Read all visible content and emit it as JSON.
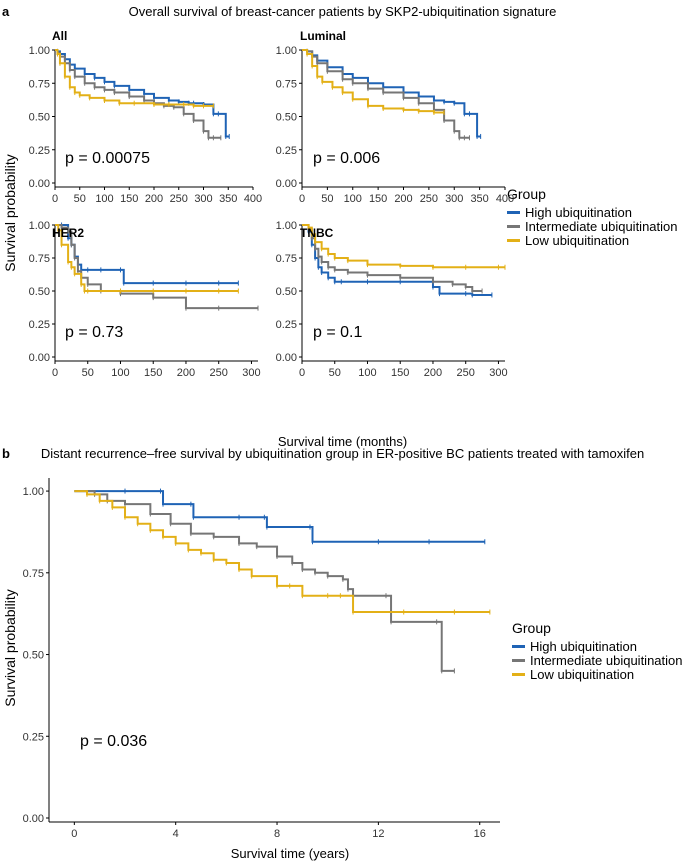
{
  "panel_a": {
    "letter": "a",
    "title": "Overall survival of breast-cancer patients by SKP2-ubiquitination signature",
    "ylabel": "Survival probability",
    "xlabel": "Survival time (months)"
  },
  "panel_b": {
    "letter": "b",
    "title": "Distant recurrence–free survival by ubiquitination group in ER-positive BC patients treated with tamoxifen",
    "ylabel": "Survival probability",
    "xlabel": "Survival time (years)"
  },
  "legend": {
    "title": "Group",
    "items": [
      {
        "label": "High ubiquitination",
        "color": "#1f63b5"
      },
      {
        "label": "Intermediate ubiquitination",
        "color": "#767676"
      },
      {
        "label": "Low ubiquitination",
        "color": "#e3b017"
      }
    ]
  },
  "chart_data": [
    {
      "type": "line",
      "title": "All",
      "annotation": "p = 0.00075",
      "xlabel": "Survival time (months)",
      "ylabel": "Survival probability",
      "xticks": [
        0,
        50,
        100,
        150,
        200,
        250,
        300,
        350,
        400
      ],
      "yticks": [
        "0.00",
        "0.25",
        "0.50",
        "0.75",
        "1.00"
      ],
      "xlim": [
        0,
        400
      ],
      "ylim": [
        0,
        1
      ],
      "series": [
        {
          "name": "High ubiquitination",
          "x": [
            0,
            5,
            10,
            20,
            30,
            40,
            60,
            80,
            100,
            120,
            150,
            180,
            200,
            230,
            250,
            270,
            280,
            300,
            320,
            330,
            345,
            352
          ],
          "y": [
            1,
            0.99,
            0.97,
            0.93,
            0.89,
            0.86,
            0.82,
            0.79,
            0.76,
            0.73,
            0.7,
            0.67,
            0.64,
            0.62,
            0.61,
            0.6,
            0.6,
            0.59,
            0.52,
            0.52,
            0.35,
            0.35
          ]
        },
        {
          "name": "Intermediate ubiquitination",
          "x": [
            0,
            5,
            10,
            20,
            30,
            40,
            60,
            80,
            100,
            120,
            150,
            180,
            200,
            220,
            240,
            260,
            280,
            300,
            310,
            320,
            335
          ],
          "y": [
            1,
            0.98,
            0.95,
            0.9,
            0.85,
            0.8,
            0.75,
            0.72,
            0.7,
            0.68,
            0.65,
            0.62,
            0.6,
            0.58,
            0.57,
            0.52,
            0.47,
            0.39,
            0.34,
            0.34,
            0.34
          ]
        },
        {
          "name": "Low ubiquitination",
          "x": [
            0,
            5,
            10,
            20,
            30,
            40,
            50,
            70,
            100,
            130,
            160,
            200,
            230,
            260,
            280,
            300,
            320
          ],
          "y": [
            1,
            0.97,
            0.9,
            0.8,
            0.72,
            0.68,
            0.66,
            0.64,
            0.62,
            0.6,
            0.6,
            0.59,
            0.59,
            0.59,
            0.58,
            0.58,
            0.58
          ]
        }
      ]
    },
    {
      "type": "line",
      "title": "Luminal",
      "annotation": "p = 0.006",
      "xlabel": "Survival time (months)",
      "ylabel": "Survival probability",
      "xticks": [
        0,
        50,
        100,
        150,
        200,
        250,
        300,
        350,
        400
      ],
      "yticks": [
        "0.00",
        "0.25",
        "0.50",
        "0.75",
        "1.00"
      ],
      "xlim": [
        0,
        400
      ],
      "ylim": [
        0,
        1
      ],
      "series": [
        {
          "name": "High ubiquitination",
          "x": [
            0,
            10,
            20,
            30,
            50,
            80,
            100,
            130,
            160,
            200,
            230,
            260,
            280,
            300,
            320,
            330,
            345,
            352
          ],
          "y": [
            1,
            0.99,
            0.96,
            0.92,
            0.87,
            0.82,
            0.79,
            0.75,
            0.72,
            0.68,
            0.65,
            0.62,
            0.61,
            0.6,
            0.52,
            0.52,
            0.35,
            0.35
          ]
        },
        {
          "name": "Intermediate ubiquitination",
          "x": [
            0,
            10,
            20,
            30,
            50,
            80,
            100,
            130,
            160,
            200,
            230,
            260,
            280,
            300,
            310,
            320,
            330
          ],
          "y": [
            1,
            0.99,
            0.95,
            0.9,
            0.84,
            0.78,
            0.75,
            0.71,
            0.68,
            0.64,
            0.6,
            0.55,
            0.47,
            0.39,
            0.34,
            0.34,
            0.34
          ]
        },
        {
          "name": "Low ubiquitination",
          "x": [
            0,
            10,
            20,
            30,
            40,
            60,
            80,
            100,
            130,
            160,
            200,
            230,
            260,
            280
          ],
          "y": [
            1,
            0.97,
            0.88,
            0.8,
            0.76,
            0.72,
            0.68,
            0.63,
            0.58,
            0.56,
            0.55,
            0.54,
            0.53,
            0.53
          ]
        }
      ]
    },
    {
      "type": "line",
      "title": "HER2",
      "annotation": "p = 0.73",
      "xlabel": "Survival time (months)",
      "ylabel": "Survival probability",
      "xticks": [
        0,
        50,
        100,
        150,
        200,
        250,
        300
      ],
      "yticks": [
        "0.00",
        "0.25",
        "0.50",
        "0.75",
        "1.00"
      ],
      "xlim": [
        0,
        310
      ],
      "ylim": [
        0,
        1
      ],
      "series": [
        {
          "name": "High ubiquitination",
          "x": [
            0,
            10,
            20,
            25,
            30,
            35,
            40,
            50,
            70,
            100,
            105,
            150,
            200,
            250,
            280
          ],
          "y": [
            1,
            1,
            0.9,
            0.85,
            0.76,
            0.7,
            0.66,
            0.66,
            0.66,
            0.66,
            0.56,
            0.56,
            0.56,
            0.56,
            0.56
          ]
        },
        {
          "name": "Intermediate ubiquitination",
          "x": [
            0,
            10,
            20,
            25,
            30,
            35,
            40,
            50,
            70,
            100,
            150,
            200,
            250,
            310
          ],
          "y": [
            1,
            0.98,
            0.95,
            0.85,
            0.75,
            0.65,
            0.6,
            0.55,
            0.5,
            0.48,
            0.45,
            0.37,
            0.37,
            0.37
          ]
        },
        {
          "name": "Low ubiquitination",
          "x": [
            0,
            5,
            10,
            20,
            25,
            30,
            40,
            45,
            50,
            100,
            150,
            200,
            250,
            280
          ],
          "y": [
            1,
            0.96,
            0.85,
            0.72,
            0.68,
            0.63,
            0.55,
            0.5,
            0.5,
            0.5,
            0.5,
            0.5,
            0.5,
            0.5
          ]
        }
      ]
    },
    {
      "type": "line",
      "title": "TNBC",
      "annotation": "p = 0.1",
      "xlabel": "Survival time (months)",
      "ylabel": "Survival probability",
      "xticks": [
        0,
        50,
        100,
        150,
        200,
        250,
        300
      ],
      "yticks": [
        "0.00",
        "0.25",
        "0.50",
        "0.75",
        "1.00"
      ],
      "xlim": [
        0,
        310
      ],
      "ylim": [
        0,
        1
      ],
      "series": [
        {
          "name": "High ubiquitination",
          "x": [
            0,
            10,
            15,
            20,
            25,
            30,
            40,
            50,
            60,
            100,
            150,
            200,
            210,
            250,
            260,
            290
          ],
          "y": [
            1,
            0.95,
            0.85,
            0.75,
            0.68,
            0.64,
            0.6,
            0.57,
            0.57,
            0.57,
            0.57,
            0.53,
            0.48,
            0.48,
            0.47,
            0.47
          ]
        },
        {
          "name": "Intermediate ubiquitination",
          "x": [
            0,
            10,
            15,
            20,
            25,
            30,
            40,
            50,
            70,
            100,
            150,
            200,
            230,
            250,
            260,
            275
          ],
          "y": [
            1,
            0.97,
            0.9,
            0.82,
            0.76,
            0.72,
            0.68,
            0.66,
            0.64,
            0.62,
            0.6,
            0.57,
            0.55,
            0.53,
            0.5,
            0.5
          ]
        },
        {
          "name": "Low ubiquitination",
          "x": [
            0,
            10,
            15,
            20,
            30,
            40,
            50,
            70,
            100,
            150,
            200,
            250,
            300,
            310
          ],
          "y": [
            1,
            0.98,
            0.93,
            0.87,
            0.82,
            0.78,
            0.75,
            0.73,
            0.7,
            0.69,
            0.68,
            0.68,
            0.68,
            0.68
          ]
        }
      ]
    },
    {
      "type": "line",
      "title": "Distant recurrence–free survival by ubiquitination group in ER-positive BC patients treated with tamoxifen",
      "annotation": "p = 0.036",
      "xlabel": "Survival time (years)",
      "ylabel": "Survival probability",
      "xticks": [
        0,
        4,
        8,
        12,
        16
      ],
      "yticks": [
        "0.00",
        "0.25",
        "0.50",
        "0.75",
        "1.00"
      ],
      "xlim": [
        -1,
        16.8
      ],
      "ylim": [
        0,
        1.04
      ],
      "series": [
        {
          "name": "High ubiquitination",
          "x": [
            0,
            2,
            3.4,
            3.5,
            4.6,
            4.7,
            6.5,
            7.5,
            7.6,
            9.3,
            9.4,
            12,
            14,
            16.2
          ],
          "y": [
            1,
            1,
            1,
            0.96,
            0.96,
            0.92,
            0.92,
            0.92,
            0.89,
            0.89,
            0.845,
            0.845,
            0.845,
            0.845
          ]
        },
        {
          "name": "Intermediate ubiquitination",
          "x": [
            0,
            0.8,
            1.3,
            2,
            3,
            3.8,
            4.6,
            5.5,
            6.5,
            7.2,
            8,
            8.6,
            9,
            9.5,
            10,
            10.6,
            10.8,
            11,
            12.3,
            12.5,
            14.3,
            14.5,
            15
          ],
          "y": [
            1,
            0.99,
            0.97,
            0.96,
            0.93,
            0.9,
            0.87,
            0.86,
            0.84,
            0.83,
            0.8,
            0.78,
            0.76,
            0.75,
            0.74,
            0.73,
            0.7,
            0.68,
            0.68,
            0.6,
            0.6,
            0.45,
            0.45
          ]
        },
        {
          "name": "Low ubiquitination",
          "x": [
            0,
            0.5,
            1,
            1.5,
            2,
            2.5,
            3,
            3.5,
            4,
            4.5,
            5,
            5.5,
            6,
            6.5,
            7,
            8,
            8.5,
            9,
            10,
            10.5,
            11,
            13,
            15,
            16.4
          ],
          "y": [
            1,
            0.99,
            0.97,
            0.95,
            0.92,
            0.9,
            0.88,
            0.86,
            0.84,
            0.82,
            0.81,
            0.79,
            0.78,
            0.76,
            0.74,
            0.71,
            0.71,
            0.68,
            0.68,
            0.68,
            0.63,
            0.63,
            0.63,
            0.63
          ]
        }
      ]
    }
  ]
}
